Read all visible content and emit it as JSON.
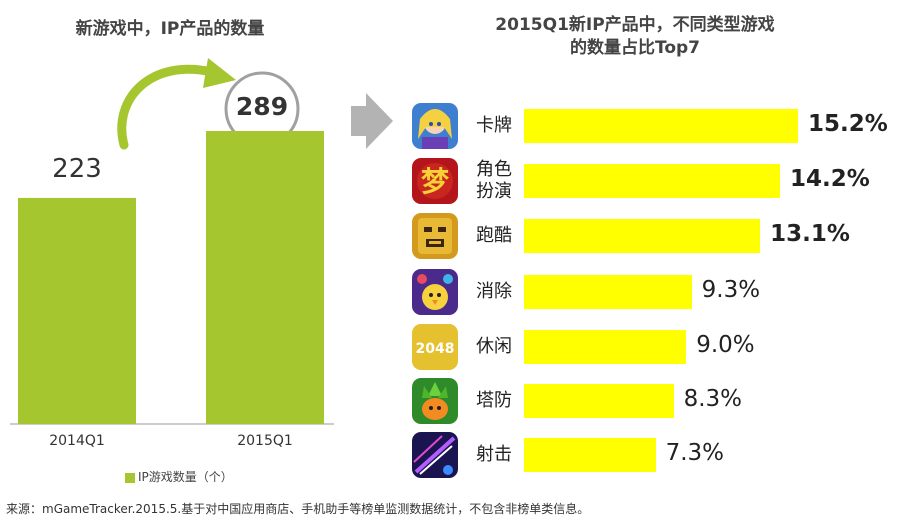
{
  "left_chart": {
    "title": "新游戏中，IP产品的数量",
    "legend": "IP游戏数量（个）"
  },
  "right_chart": {
    "title_line1": "2015Q1新IP产品中，不同类型游戏",
    "title_line2": "的数量占比Top7"
  },
  "source": "来源：mGameTracker.2015.5.基于对中国应用商店、手机助手等榜单监测数据统计，不包含非榜单类信息。",
  "colors": {
    "green_bar": "#a6c62f",
    "yellow_bar": "#ffff00",
    "arrow_grey": "#b3b3b3"
  },
  "chart_data": [
    {
      "type": "bar",
      "categories": [
        "2014Q1",
        "2015Q1"
      ],
      "values": [
        223,
        289
      ],
      "value_labels": [
        "223",
        "289"
      ],
      "legend": "IP游戏数量（个）",
      "title": "新游戏中，IP产品的数量"
    },
    {
      "type": "bar",
      "orientation": "horizontal",
      "title": "2015Q1新IP产品中，不同类型游戏的数量占比Top7",
      "categories": [
        "卡牌",
        "角色扮演",
        "跑酷",
        "消除",
        "休闲",
        "塔防",
        "射击"
      ],
      "category_lines": [
        [
          "卡牌"
        ],
        [
          "角色",
          "扮演"
        ],
        [
          "跑酷"
        ],
        [
          "消除"
        ],
        [
          "休闲"
        ],
        [
          "塔防"
        ],
        [
          "射击"
        ]
      ],
      "values": [
        15.2,
        14.2,
        13.1,
        9.3,
        9.0,
        8.3,
        7.3
      ],
      "value_labels": [
        "15.2%",
        "14.2%",
        "13.1%",
        "9.3%",
        "9.0%",
        "8.3%",
        "7.3%"
      ],
      "bold_labels": [
        true,
        true,
        true,
        false,
        false,
        false,
        false
      ],
      "icons": [
        "card-hero-icon",
        "rpg-dream-icon",
        "temple-run-icon",
        "match-chick-icon",
        "2048-icon",
        "carrot-defense-icon",
        "shooter-ship-icon"
      ],
      "icon_text": [
        "",
        "",
        "",
        "",
        "2048",
        "",
        ""
      ]
    }
  ]
}
